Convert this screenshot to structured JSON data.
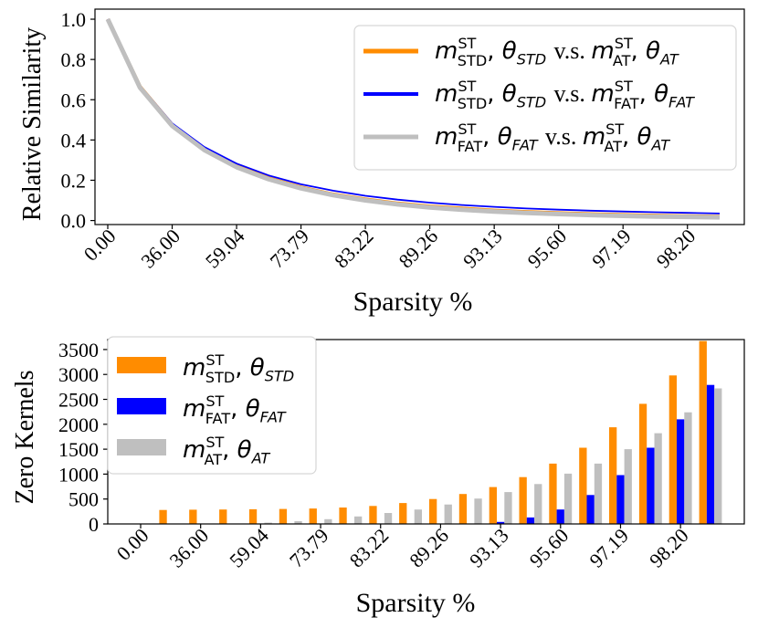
{
  "chart_data": [
    {
      "type": "line",
      "ylabel": "Relative Similarity",
      "xlabel": "Sparsity %",
      "x_tick_labels": [
        "0.00",
        "36.00",
        "59.04",
        "73.79",
        "83.22",
        "89.26",
        "93.13",
        "95.60",
        "97.19",
        "98.20"
      ],
      "ylim": [
        -0.02,
        1.05
      ],
      "y_ticks": [
        "0.0",
        "0.2",
        "0.4",
        "0.6",
        "0.8",
        "1.0"
      ],
      "y_tick_values": [
        0,
        0.2,
        0.4,
        0.6,
        0.8,
        1.0
      ],
      "legend_position": "top-right",
      "series": [
        {
          "name": "m^{ST}_{STD}, θ_{STD} v.s. m^{ST}_{AT}, θ_{AT}",
          "color": "#ff8c00",
          "values": [
            1.0,
            0.665,
            0.475,
            0.355,
            0.27,
            0.21,
            0.165,
            0.13,
            0.105,
            0.085,
            0.07,
            0.06,
            0.05,
            0.043,
            0.037,
            0.032,
            0.028,
            0.025,
            0.022,
            0.02
          ]
        },
        {
          "name": "m^{ST}_{STD}, θ_{STD} v.s. m^{ST}_{FAT}, θ_{FAT}",
          "color": "#0000ff",
          "values": [
            1.0,
            0.67,
            0.483,
            0.365,
            0.283,
            0.224,
            0.18,
            0.148,
            0.123,
            0.104,
            0.089,
            0.077,
            0.068,
            0.06,
            0.054,
            0.049,
            0.045,
            0.041,
            0.038,
            0.035
          ]
        },
        {
          "name": "m^{ST}_{FAT}, θ_{FAT} v.s. m^{ST}_{AT}, θ_{AT}",
          "color": "#bfbfbf",
          "values": [
            1.0,
            0.66,
            0.47,
            0.35,
            0.265,
            0.205,
            0.16,
            0.126,
            0.1,
            0.08,
            0.065,
            0.054,
            0.045,
            0.038,
            0.032,
            0.027,
            0.023,
            0.02,
            0.018,
            0.016
          ]
        }
      ]
    },
    {
      "type": "bar",
      "ylabel": "Zero Kernels",
      "xlabel": "Sparsity %",
      "x_tick_labels": [
        "0.00",
        "36.00",
        "59.04",
        "73.79",
        "83.22",
        "89.26",
        "93.13",
        "95.60",
        "97.19",
        "98.20"
      ],
      "ylim": [
        0,
        3700
      ],
      "y_ticks": [
        "0",
        "500",
        "1000",
        "1500",
        "2000",
        "2500",
        "3000",
        "3500"
      ],
      "y_tick_values": [
        0,
        500,
        1000,
        1500,
        2000,
        2500,
        3000,
        3500
      ],
      "legend_position": "top-left",
      "series": [
        {
          "name": "m^{ST}_{STD}, θ_{STD}",
          "color": "#ff8c00",
          "values": [
            0,
            280,
            285,
            290,
            295,
            300,
            310,
            330,
            360,
            420,
            500,
            600,
            740,
            940,
            1210,
            1530,
            1940,
            2410,
            2980,
            3670
          ]
        },
        {
          "name": "m^{ST}_{FAT}, θ_{FAT}",
          "color": "#0000ff",
          "values": [
            0,
            0,
            0,
            0,
            0,
            0,
            0,
            0,
            0,
            0,
            0,
            0,
            40,
            130,
            290,
            580,
            980,
            1530,
            2100,
            2790
          ]
        },
        {
          "name": "m^{ST}_{AT}, θ_{AT}",
          "color": "#bfbfbf",
          "values": [
            0,
            0,
            0,
            0,
            25,
            55,
            95,
            150,
            220,
            290,
            390,
            510,
            640,
            800,
            1010,
            1210,
            1500,
            1820,
            2240,
            2720
          ]
        }
      ]
    }
  ]
}
